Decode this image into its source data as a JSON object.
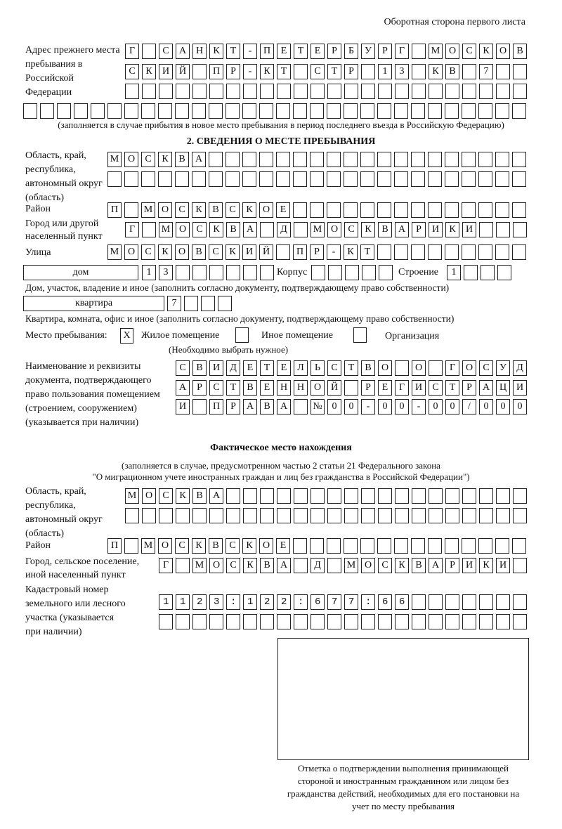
{
  "header": "Оборотная сторона первого листа",
  "prev_address": {
    "label": "Адрес прежнего места пребывания в Российской Федерации",
    "rows": [
      "Г САНКТ-ПЕТЕРБУРГ МОСКОВ",
      "СКИЙ ПР-КТ СТР 13 КВ 7  ",
      "                        ",
      "                              "
    ],
    "note": "(заполняется в случае прибытия в новое место пребывания в период последнего въезда в Российскую Федерацию)"
  },
  "section2": {
    "title": "2. СВЕДЕНИЯ О МЕСТЕ ПРЕБЫВАНИЯ",
    "region_label": "Область, край, республика, автономный округ (область)",
    "region_rows": [
      "МОСКВА                   ",
      "                         "
    ],
    "district_label": "Район",
    "district_row": "П МОСКВСКОЕ              ",
    "city_label": "Город или другой населенный пункт",
    "city_row": "Г МОСКВА Д МОСКВАРИКИ   ",
    "street_label": "Улица",
    "street_row": "МОСКОВСКИЙ ПР-КТ         ",
    "house_type": "дом",
    "house_row": "13      ",
    "korpus_label": "Корпус",
    "korpus_row": "     ",
    "building_label": "Строение",
    "building_row": "1   ",
    "house_note": "Дом, участок, владение и иное (заполнить согласно документу, подтверждающему право собственности)",
    "flat_type": "квартира",
    "flat_row": "7   ",
    "flat_note": "Квартира, комната, офис и иное (заполнить согласно документу, подтверждающему право собственности)",
    "place_label": "Место пребывания:",
    "options": [
      {
        "mark": "X",
        "label": "Жилое помещение"
      },
      {
        "mark": "",
        "label": "Иное помещение"
      },
      {
        "mark": "",
        "label": "Организация"
      }
    ],
    "place_note": "(Необходимо выбрать нужное)",
    "doc_label": "Наименование и реквизиты документа, подтверждающего право пользования помещением (строением, сооружением) (указывается при наличии)",
    "doc_rows": [
      "СВИДЕТЕЛЬСТВО О ГОСУД",
      "АРСТВЕННОЙ РЕГИСТРАЦИ",
      "И ПРАВА №00-00-00/000"
    ]
  },
  "actual": {
    "title": "Фактическое место нахождения",
    "note1": "(заполняется в случае, предусмотренном частью 2 статьи 21 Федерального закона",
    "note2": "\"О миграционном учете иностранных граждан и лиц без гражданства в Российской Федерации\")",
    "region_label": "Область, край, республика, автономный округ (область)",
    "region_rows": [
      "МОСКВА                  ",
      "                        "
    ],
    "district_label": "Район",
    "district_row": "П МОСКВСКОЕ              ",
    "city_label": "Город, сельское поселение, иной населенный пункт",
    "city_row": "Г МОСКВА Д МОСКВАРИКИ ",
    "cadastre_label": "Кадастровый номер земельного или лесного участка (указывается при наличии)",
    "cadastre_rows": [
      "1123:122:677:66       ",
      "                      "
    ]
  },
  "stamp_caption": "Отметка о подтверждении выполнения принимающей стороной и иностранным гражданином или лицом без гражданства действий, необходимых для его постановки на учет по месту пребывания"
}
